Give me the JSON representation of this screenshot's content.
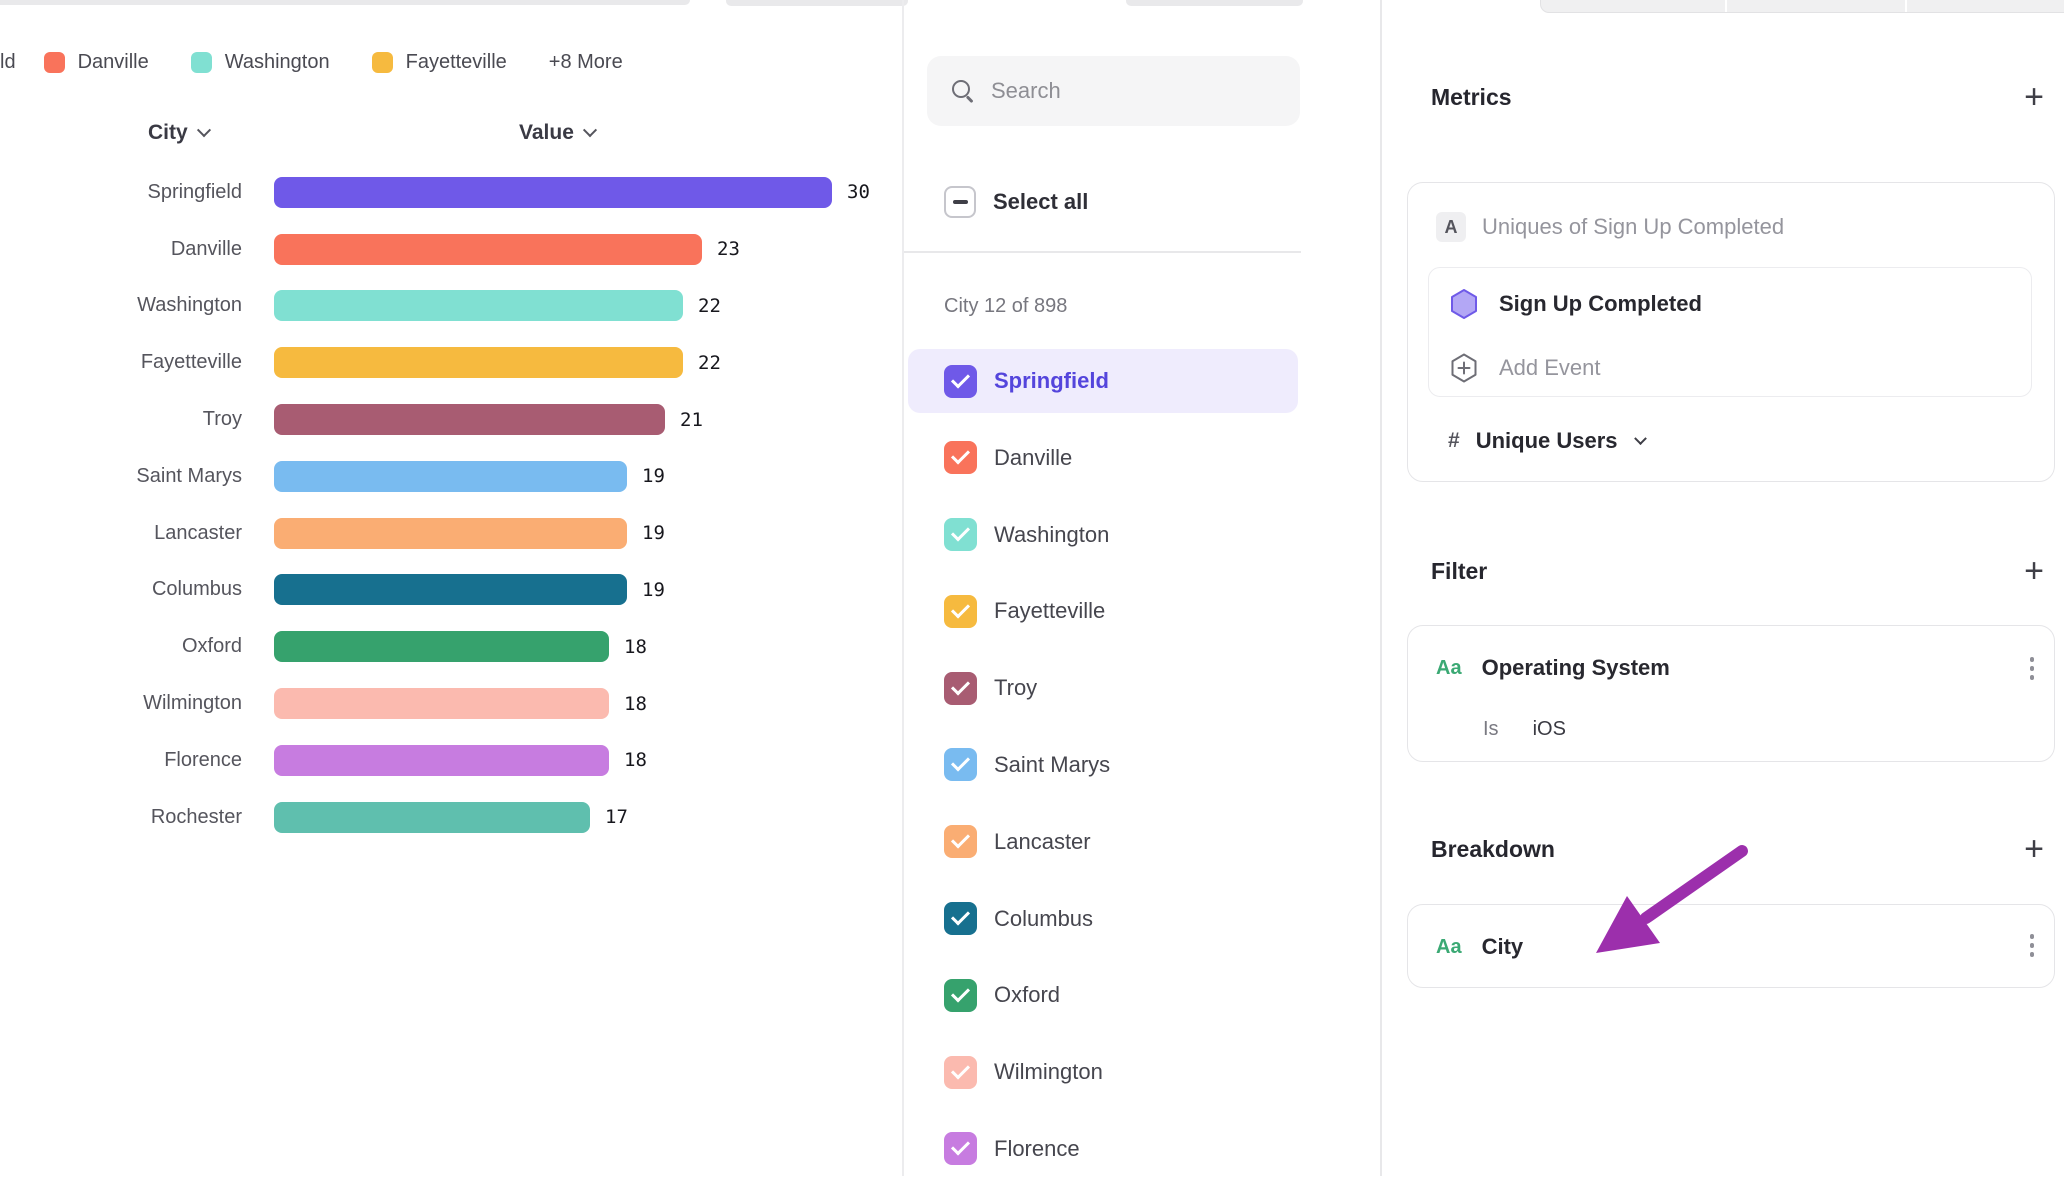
{
  "chart_data": {
    "type": "bar",
    "orientation": "horizontal",
    "columns": {
      "category_header": "City",
      "value_header": "Value"
    },
    "categories": [
      "Springfield",
      "Danville",
      "Washington",
      "Fayetteville",
      "Troy",
      "Saint Marys",
      "Lancaster",
      "Columbus",
      "Oxford",
      "Wilmington",
      "Florence",
      "Rochester"
    ],
    "values": [
      30,
      23,
      22,
      22,
      21,
      19,
      19,
      19,
      18,
      18,
      18,
      17
    ],
    "colors": [
      "#6F59E8",
      "#F9735B",
      "#80E0D2",
      "#F6BA3F",
      "#A85C72",
      "#79BBF0",
      "#FAAD73",
      "#17708F",
      "#36A26D",
      "#FBBAAF",
      "#C77CE0",
      "#5FBFAE"
    ],
    "xlim": [
      0,
      30
    ],
    "grid": false,
    "legend": {
      "position": "top",
      "truncated_fragment": "ld",
      "visible_items": [
        "Danville",
        "Washington",
        "Fayetteville"
      ],
      "more_label": "+8 More"
    }
  },
  "selector": {
    "search_placeholder": "Search",
    "select_all": {
      "label": "Select all",
      "state": "indeterminate"
    },
    "count_label": "City 12 of 898",
    "items": [
      {
        "label": "Springfield",
        "color": "#6F59E8",
        "checked": true,
        "highlighted": true
      },
      {
        "label": "Danville",
        "color": "#F9735B",
        "checked": true,
        "highlighted": false
      },
      {
        "label": "Washington",
        "color": "#80E0D2",
        "checked": true,
        "highlighted": false
      },
      {
        "label": "Fayetteville",
        "color": "#F6BA3F",
        "checked": true,
        "highlighted": false
      },
      {
        "label": "Troy",
        "color": "#A85C72",
        "checked": true,
        "highlighted": false
      },
      {
        "label": "Saint Marys",
        "color": "#79BBF0",
        "checked": true,
        "highlighted": false
      },
      {
        "label": "Lancaster",
        "color": "#FAAD73",
        "checked": true,
        "highlighted": false
      },
      {
        "label": "Columbus",
        "color": "#17708F",
        "checked": true,
        "highlighted": false
      },
      {
        "label": "Oxford",
        "color": "#36A26D",
        "checked": true,
        "highlighted": false
      },
      {
        "label": "Wilmington",
        "color": "#FBBAAF",
        "checked": true,
        "highlighted": false
      },
      {
        "label": "Florence",
        "color": "#C77CE0",
        "checked": true,
        "highlighted": false
      }
    ]
  },
  "inspector": {
    "metrics": {
      "heading": "Metrics",
      "add_label": "+",
      "metric": {
        "badge": "A",
        "summary": "Uniques of Sign Up Completed",
        "event": "Sign Up Completed",
        "add_event_label": "Add Event",
        "aggregation_prefix": "#",
        "aggregation": "Unique Users"
      }
    },
    "filter": {
      "heading": "Filter",
      "add_label": "+",
      "property_type": "Aa",
      "property": "Operating System",
      "operator": "Is",
      "value": "iOS"
    },
    "breakdown": {
      "heading": "Breakdown",
      "add_label": "+",
      "property_type": "Aa",
      "property": "City",
      "annotation_arrow_color": "#9C2FAC"
    }
  }
}
